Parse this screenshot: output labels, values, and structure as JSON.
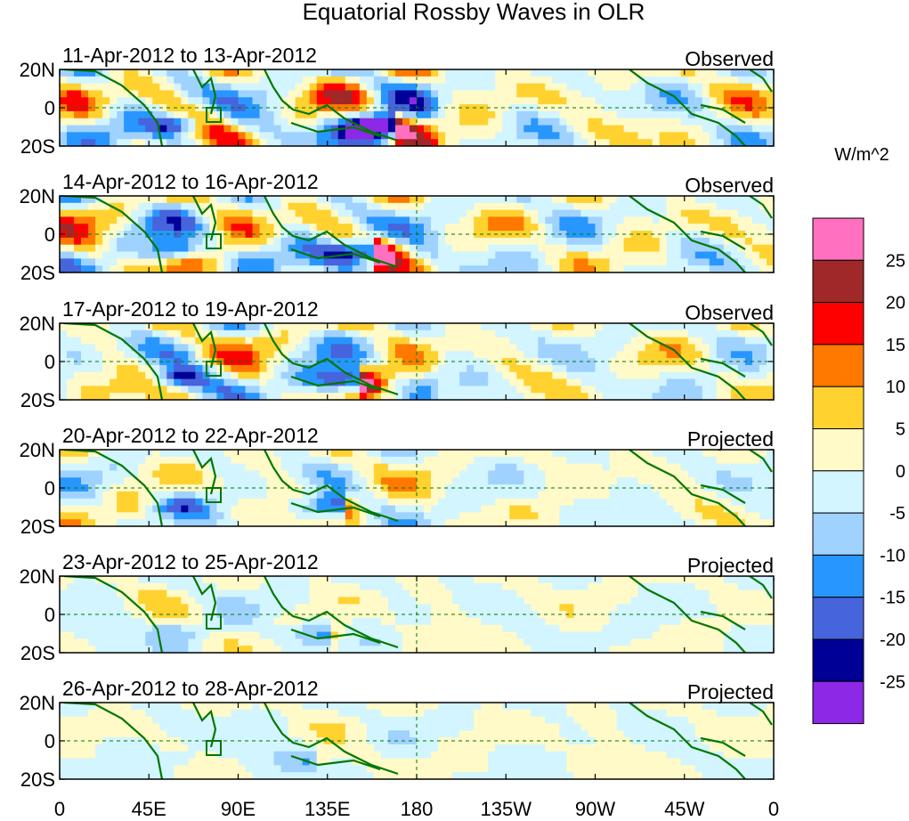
{
  "title": "Equatorial Rossby Waves in OLR",
  "units": "W/m^2",
  "y_ticks": [
    "20N",
    "0",
    "20S"
  ],
  "x_ticks": [
    "0",
    "45E",
    "90E",
    "135E",
    "180",
    "135W",
    "90W",
    "45W",
    "0"
  ],
  "panels": [
    {
      "dates": "11-Apr-2012 to 13-Apr-2012",
      "kind": "Observed",
      "amp": 1.0
    },
    {
      "dates": "14-Apr-2012 to 16-Apr-2012",
      "kind": "Observed",
      "amp": 0.95
    },
    {
      "dates": "17-Apr-2012 to 19-Apr-2012",
      "kind": "Observed",
      "amp": 0.8
    },
    {
      "dates": "20-Apr-2012 to 22-Apr-2012",
      "kind": "Projected",
      "amp": 0.55
    },
    {
      "dates": "23-Apr-2012 to 25-Apr-2012",
      "kind": "Projected",
      "amp": 0.35
    },
    {
      "dates": "26-Apr-2012 to 28-Apr-2012",
      "kind": "Projected",
      "amp": 0.25
    }
  ],
  "colorbar": {
    "labels": [
      "25",
      "20",
      "15",
      "10",
      "5",
      "0",
      "-5",
      "-10",
      "-15",
      "-20",
      "-25"
    ],
    "colors": [
      "#ff70c0",
      "#a02828",
      "#ff0000",
      "#ff7800",
      "#ffd230",
      "#fffac8",
      "#d2f5ff",
      "#a0d2ff",
      "#2896ff",
      "#4664dc",
      "#000096",
      "#8c28e6"
    ]
  },
  "colors": {
    "coast": "#007800",
    "equator_dash": "#007800"
  }
}
